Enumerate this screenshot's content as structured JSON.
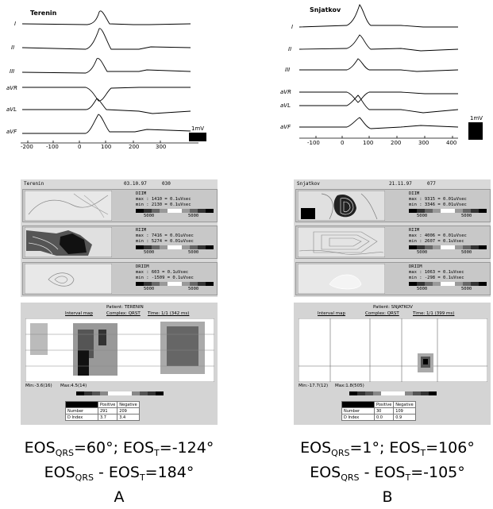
{
  "panelA": {
    "ecg_name": "Terenin",
    "leads": [
      "I",
      "II",
      "III",
      "aVR",
      "aVL",
      "aVF"
    ],
    "ticks": [
      "-200",
      "-100",
      "0",
      "100",
      "200",
      "300"
    ],
    "scale_label": "1mV",
    "header": {
      "name": "Terenin",
      "date": "03.10.97",
      "id": "030"
    },
    "maps": [
      {
        "title": "DIIM",
        "max": "max :  1410 = 0.1uVsec",
        "min": "min :  2130 = 0.1uVsec",
        "scale_left": "5000",
        "scale_right": "5000"
      },
      {
        "title": "RIIM",
        "max": "max :  7416 = 0.01uVsec",
        "min": "min :  5274 = 0.01uVsec",
        "scale_left": "5000",
        "scale_right": "5000"
      },
      {
        "title": "DRIIM",
        "max": "max :  603 = 0.1uVsec",
        "min": "min :  -1509 = 0.1uVsec",
        "scale_left": "5000",
        "scale_right": "5000"
      }
    ],
    "grid": {
      "patient": "Patient:  TERENIN",
      "interval": "Interval map",
      "complex": "Complex:  QRST",
      "time": "Time:  1/1 (342 ms)",
      "min_text": "Min:-3.6(16)",
      "max_text": "Max:4.5(14)",
      "table": {
        "h1": "Positive",
        "h2": "Negative",
        "r1": [
          "Number",
          "291",
          "209"
        ],
        "r2": [
          "D Index",
          "3.7",
          "3.4"
        ]
      }
    },
    "eos1": "=60°; EOS",
    "eos1b": "=-124°",
    "eos2": " - EOS",
    "eos2b": "=184°",
    "letter": "A"
  },
  "panelB": {
    "ecg_name": "Snjatkov",
    "leads": [
      "I",
      "II",
      "III",
      "aVR",
      "aVL",
      "aVF"
    ],
    "ticks": [
      "-100",
      "0",
      "100",
      "200",
      "300",
      "400"
    ],
    "scale_label": "1mV",
    "header": {
      "name": "Snjatkov",
      "date": "21.11.97",
      "id": "077"
    },
    "maps": [
      {
        "title": "DIIM",
        "max": "max :  9315 = 0.01uVsec",
        "min": "min :  3346 = 0.01uVsec",
        "scale_left": "5000",
        "scale_right": "5000"
      },
      {
        "title": "RIIM",
        "max": "max :  4006 = 0.01uVsec",
        "min": "min :  2607 = 0.1uVsec",
        "scale_left": "5000",
        "scale_right": "5000"
      },
      {
        "title": "DRIIM",
        "max": "max :  1063 = 0.1uVsec",
        "min": "min :  -298 = 0.1uVsec",
        "scale_left": "5000",
        "scale_right": "5000"
      }
    ],
    "grid": {
      "patient": "Patient:  SNJATKOV",
      "interval": "Interval map",
      "complex": "Complex:  QRST",
      "time": "Time:  1/1 (399 ms)",
      "min_text": "Min:-17.7(12)",
      "max_text": "Max:1.8(505)",
      "table": {
        "h1": "Positive",
        "h2": "Negative",
        "r1": [
          "Number",
          "30",
          "109"
        ],
        "r2": [
          "D Index",
          "0.0",
          "0.9"
        ]
      }
    },
    "eos1": "=1°; EOS",
    "eos1b": "=106°",
    "eos2": " - EOS",
    "eos2b": "=-105°",
    "letter": "B"
  },
  "eos_label": "EOS",
  "sub_qrs": "QRS",
  "sub_t": "T"
}
